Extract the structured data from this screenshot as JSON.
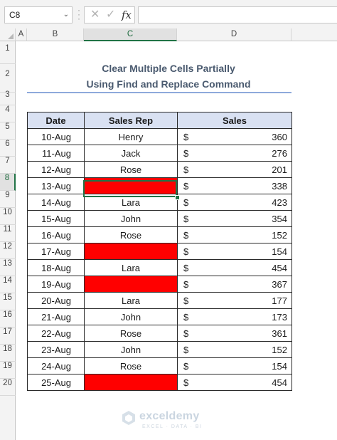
{
  "formula_bar": {
    "name_box": "C8",
    "cancel_icon": "✕",
    "enter_icon": "✓",
    "fx_label": "fx",
    "formula": ""
  },
  "columns": [
    "A",
    "B",
    "C",
    "D"
  ],
  "selected_column": "C",
  "rows": [
    "1",
    "2",
    "3",
    "4",
    "5",
    "6",
    "7",
    "8",
    "9",
    "10",
    "11",
    "12",
    "13",
    "14",
    "15",
    "16",
    "17",
    "18",
    "19",
    "20"
  ],
  "selected_row": "8",
  "title": {
    "line1": "Clear Multiple Cells Partially",
    "line2": "Using Find and Replace Command"
  },
  "table": {
    "headers": {
      "date": "Date",
      "rep": "Sales Rep",
      "sales": "Sales"
    },
    "currency": "$",
    "data": [
      {
        "date": "10-Aug",
        "rep": "Henry",
        "sales": "360",
        "cleared": false
      },
      {
        "date": "11-Aug",
        "rep": "Jack",
        "sales": "276",
        "cleared": false
      },
      {
        "date": "12-Aug",
        "rep": "Rose",
        "sales": "201",
        "cleared": false
      },
      {
        "date": "13-Aug",
        "rep": "",
        "sales": "338",
        "cleared": true
      },
      {
        "date": "14-Aug",
        "rep": "Lara",
        "sales": "423",
        "cleared": false
      },
      {
        "date": "15-Aug",
        "rep": "John",
        "sales": "354",
        "cleared": false
      },
      {
        "date": "16-Aug",
        "rep": "Rose",
        "sales": "152",
        "cleared": false
      },
      {
        "date": "17-Aug",
        "rep": "",
        "sales": "154",
        "cleared": true
      },
      {
        "date": "18-Aug",
        "rep": "Lara",
        "sales": "454",
        "cleared": false
      },
      {
        "date": "19-Aug",
        "rep": "",
        "sales": "367",
        "cleared": true
      },
      {
        "date": "20-Aug",
        "rep": "Lara",
        "sales": "177",
        "cleared": false
      },
      {
        "date": "21-Aug",
        "rep": "John",
        "sales": "173",
        "cleared": false
      },
      {
        "date": "22-Aug",
        "rep": "Rose",
        "sales": "361",
        "cleared": false
      },
      {
        "date": "23-Aug",
        "rep": "John",
        "sales": "152",
        "cleared": false
      },
      {
        "date": "24-Aug",
        "rep": "Rose",
        "sales": "154",
        "cleared": false
      },
      {
        "date": "25-Aug",
        "rep": "",
        "sales": "454",
        "cleared": true
      }
    ]
  },
  "colors": {
    "cleared_fill": "#ff0000",
    "header_fill": "#d9e1f2",
    "selection": "#217346",
    "title_text": "#4a5a6f"
  },
  "watermark": {
    "name": "exceldemy",
    "tagline": "EXCEL · DATA · BI"
  }
}
